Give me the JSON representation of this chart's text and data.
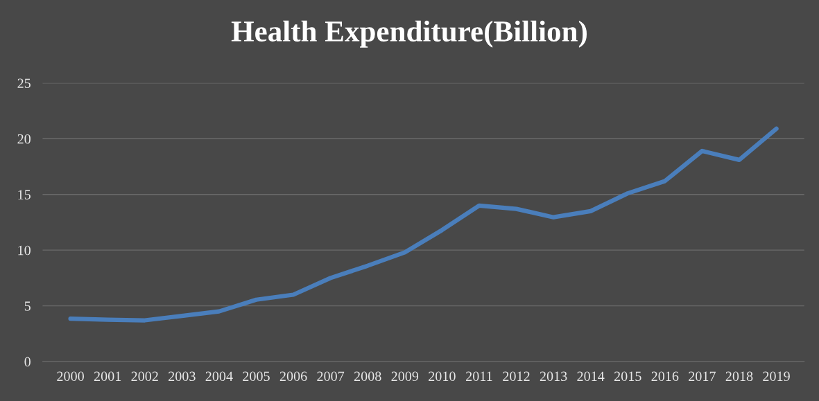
{
  "chart_data": {
    "type": "line",
    "title": "Health Expenditure(Billion)",
    "categories": [
      "2000",
      "2001",
      "2002",
      "2003",
      "2004",
      "2005",
      "2006",
      "2007",
      "2008",
      "2009",
      "2010",
      "2011",
      "2012",
      "2013",
      "2014",
      "2015",
      "2016",
      "2017",
      "2018",
      "2019"
    ],
    "series": [
      {
        "color": "#4a7ebb",
        "values": [
          3.85,
          3.75,
          3.7,
          4.1,
          4.5,
          5.55,
          6.0,
          7.5,
          8.6,
          9.8,
          11.8,
          14.0,
          13.7,
          12.95,
          13.5,
          15.1,
          16.2,
          18.9,
          18.1,
          20.9
        ]
      }
    ],
    "ylim": [
      0,
      25
    ],
    "yticks": [
      0,
      5,
      10,
      15,
      20,
      25
    ],
    "grid": "y",
    "marker": "none",
    "line_style": "solid"
  }
}
